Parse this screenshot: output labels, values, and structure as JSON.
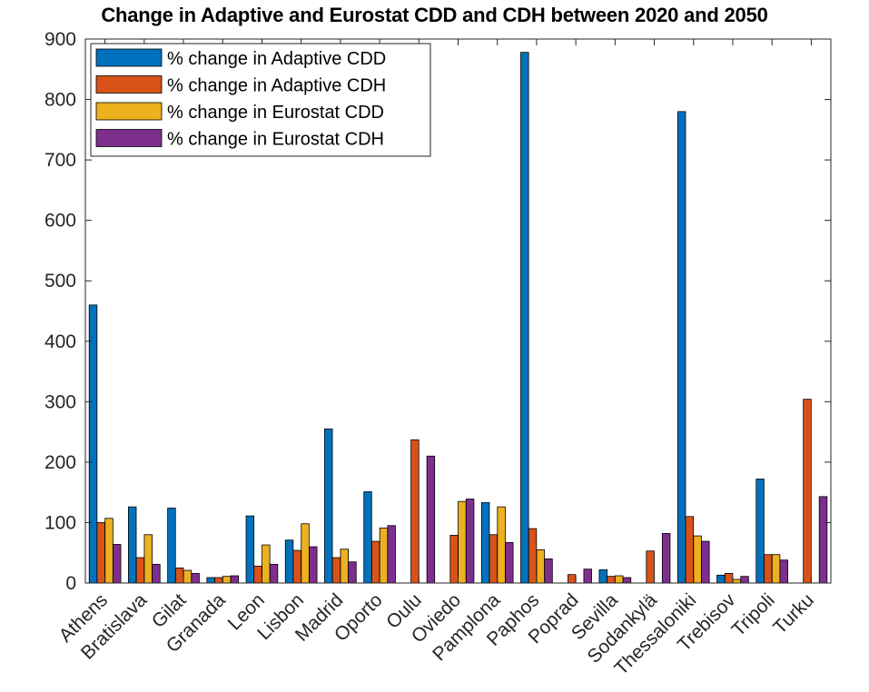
{
  "chart_data": {
    "type": "bar",
    "title": "Change in Adaptive and Eurostat CDD and CDH between 2020 and 2050",
    "xlabel": "",
    "ylabel": "",
    "ylim": [
      0,
      900
    ],
    "yticks": [
      0,
      100,
      200,
      300,
      400,
      500,
      600,
      700,
      800,
      900
    ],
    "grid": false,
    "legend_position": "top-left",
    "categories": [
      "Athens",
      "Bratislava",
      "Gilat",
      "Granada",
      "Leon",
      "Lisbon",
      "Madrid",
      "Oporto",
      "Oulu",
      "Oviedo",
      "Pamplona",
      "Paphos",
      "Poprad",
      "Sevilla",
      "Sodankylä",
      "Thessaloniki",
      "Trebisov",
      "Tripoli",
      "Turku"
    ],
    "series": [
      {
        "name": "% change in Adaptive CDD",
        "color": "#0072BD",
        "values": [
          460,
          126,
          124,
          9,
          111,
          71,
          255,
          151,
          0,
          0,
          133,
          878,
          0,
          22,
          0,
          780,
          13,
          172,
          0
        ]
      },
      {
        "name": "% change in Adaptive CDH",
        "color": "#D95319",
        "values": [
          100,
          42,
          25,
          9,
          28,
          54,
          42,
          69,
          237,
          79,
          80,
          90,
          14,
          11,
          53,
          110,
          16,
          47,
          304
        ]
      },
      {
        "name": "% change in Eurostat CDD",
        "color": "#EDB120",
        "values": [
          107,
          80,
          21,
          11,
          63,
          98,
          56,
          91,
          0,
          135,
          126,
          55,
          0,
          12,
          0,
          78,
          6,
          47,
          0
        ]
      },
      {
        "name": "% change in Eurostat CDH",
        "color": "#7E2F8E",
        "values": [
          64,
          31,
          16,
          12,
          31,
          60,
          35,
          95,
          210,
          139,
          67,
          40,
          23,
          9,
          82,
          69,
          11,
          38,
          143
        ]
      }
    ]
  }
}
